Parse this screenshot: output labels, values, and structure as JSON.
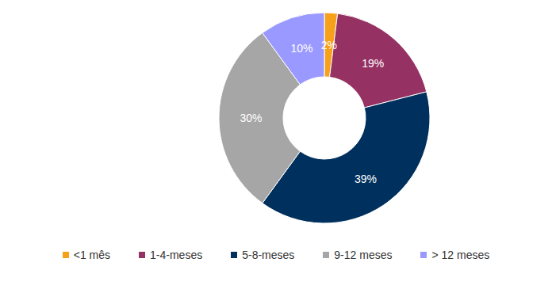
{
  "chart_data": {
    "type": "pie",
    "categories": [
      "<1 mês",
      "1-4-meses",
      "5-8-meses",
      "9-12 meses",
      "> 12 meses"
    ],
    "values": [
      2,
      19,
      39,
      30,
      10
    ],
    "value_labels": [
      "2%",
      "19%",
      "39%",
      "30%",
      "10%"
    ],
    "colors": [
      "#f7a11a",
      "#953163",
      "#00305e",
      "#a6a6a6",
      "#9999ff"
    ],
    "data_labels": true,
    "legend": "bottom"
  }
}
